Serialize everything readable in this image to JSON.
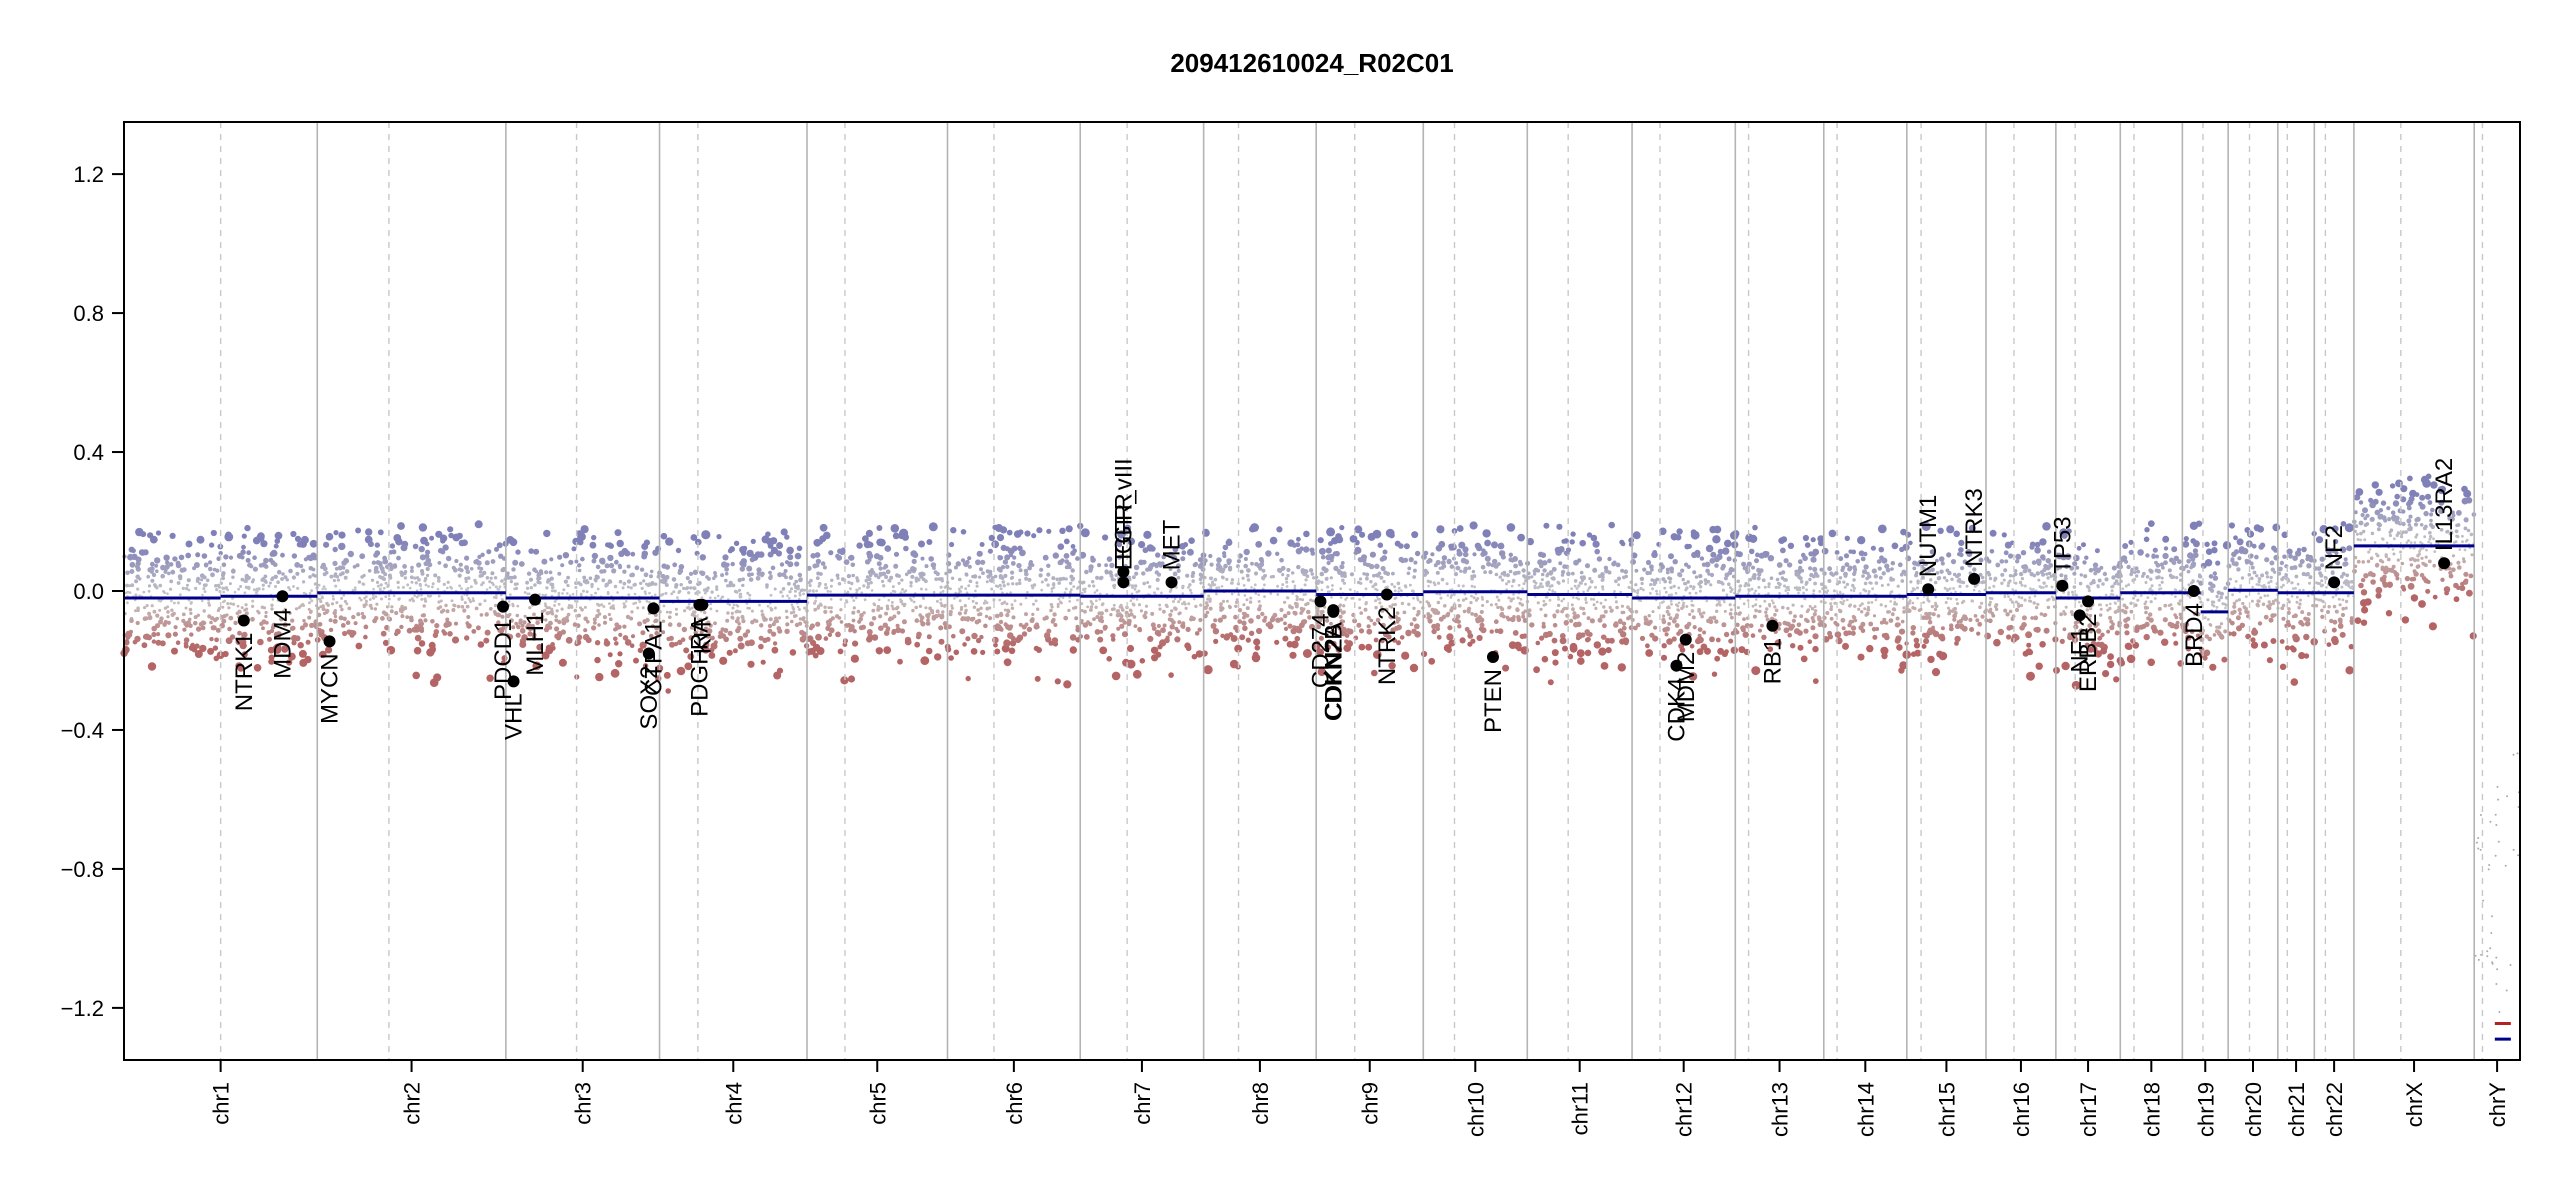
{
  "chart_data": {
    "type": "scatter",
    "title": "209412610024_R02C01",
    "xlabel": "",
    "ylabel": "",
    "ylim": [
      -1.35,
      1.35
    ],
    "y_ticks": [
      1.2,
      0.8,
      0.4,
      0.0,
      -0.4,
      -0.8,
      -1.2
    ],
    "y_tick_labels": [
      "1.2",
      "0.8",
      "0.4",
      "0.0",
      "−0.4",
      "−0.8",
      "−1.2"
    ],
    "chromosomes": [
      {
        "name": "chr1",
        "length": 249,
        "centromere": 0.5
      },
      {
        "name": "chr2",
        "length": 243,
        "centromere": 0.38
      },
      {
        "name": "chr3",
        "length": 198,
        "centromere": 0.46
      },
      {
        "name": "chr4",
        "length": 190,
        "centromere": 0.26
      },
      {
        "name": "chr5",
        "length": 181,
        "centromere": 0.27
      },
      {
        "name": "chr6",
        "length": 171,
        "centromere": 0.35
      },
      {
        "name": "chr7",
        "length": 159,
        "centromere": 0.38
      },
      {
        "name": "chr8",
        "length": 145,
        "centromere": 0.31
      },
      {
        "name": "chr9",
        "length": 138,
        "centromere": 0.36
      },
      {
        "name": "chr10",
        "length": 134,
        "centromere": 0.3
      },
      {
        "name": "chr11",
        "length": 135,
        "centromere": 0.39
      },
      {
        "name": "chr12",
        "length": 133,
        "centromere": 0.27
      },
      {
        "name": "chr13",
        "length": 114,
        "centromere": 0.15
      },
      {
        "name": "chr14",
        "length": 107,
        "centromere": 0.16
      },
      {
        "name": "chr15",
        "length": 102,
        "centromere": 0.18
      },
      {
        "name": "chr16",
        "length": 90,
        "centromere": 0.4
      },
      {
        "name": "chr17",
        "length": 83,
        "centromere": 0.3
      },
      {
        "name": "chr18",
        "length": 80,
        "centromere": 0.22
      },
      {
        "name": "chr19",
        "length": 59,
        "centromere": 0.45
      },
      {
        "name": "chr20",
        "length": 64,
        "centromere": 0.43
      },
      {
        "name": "chr21",
        "length": 47,
        "centromere": 0.26
      },
      {
        "name": "chr22",
        "length": 51,
        "centromere": 0.28
      },
      {
        "name": "chrX",
        "length": 155,
        "centromere": 0.39
      },
      {
        "name": "chrY",
        "length": 59,
        "centromere": 0.18
      }
    ],
    "segments": [
      {
        "chrom": "chr1",
        "start": 0.0,
        "end": 0.5,
        "value": -0.02
      },
      {
        "chrom": "chr1",
        "start": 0.5,
        "end": 1.0,
        "value": -0.015
      },
      {
        "chrom": "chr2",
        "start": 0.0,
        "end": 1.0,
        "value": -0.005
      },
      {
        "chrom": "chr3",
        "start": 0.0,
        "end": 1.0,
        "value": -0.02
      },
      {
        "chrom": "chr4",
        "start": 0.0,
        "end": 1.0,
        "value": -0.03
      },
      {
        "chrom": "chr5",
        "start": 0.0,
        "end": 1.0,
        "value": -0.012
      },
      {
        "chrom": "chr6",
        "start": 0.0,
        "end": 1.0,
        "value": -0.012
      },
      {
        "chrom": "chr7",
        "start": 0.0,
        "end": 1.0,
        "value": -0.015
      },
      {
        "chrom": "chr8",
        "start": 0.0,
        "end": 1.0,
        "value": 0.0
      },
      {
        "chrom": "chr9",
        "start": 0.0,
        "end": 1.0,
        "value": -0.01
      },
      {
        "chrom": "chr10",
        "start": 0.0,
        "end": 1.0,
        "value": -0.002
      },
      {
        "chrom": "chr11",
        "start": 0.0,
        "end": 1.0,
        "value": -0.01
      },
      {
        "chrom": "chr12",
        "start": 0.0,
        "end": 1.0,
        "value": -0.02
      },
      {
        "chrom": "chr13",
        "start": 0.0,
        "end": 1.0,
        "value": -0.015
      },
      {
        "chrom": "chr14",
        "start": 0.0,
        "end": 1.0,
        "value": -0.015
      },
      {
        "chrom": "chr15",
        "start": 0.0,
        "end": 1.0,
        "value": -0.01
      },
      {
        "chrom": "chr16",
        "start": 0.0,
        "end": 1.0,
        "value": -0.005
      },
      {
        "chrom": "chr17",
        "start": 0.0,
        "end": 1.0,
        "value": -0.02
      },
      {
        "chrom": "chr18",
        "start": 0.0,
        "end": 1.0,
        "value": -0.005
      },
      {
        "chrom": "chr19",
        "start": 0.0,
        "end": 0.4,
        "value": -0.005
      },
      {
        "chrom": "chr19",
        "start": 0.4,
        "end": 1.0,
        "value": -0.06
      },
      {
        "chrom": "chr20",
        "start": 0.0,
        "end": 1.0,
        "value": 0.002
      },
      {
        "chrom": "chr21",
        "start": 0.0,
        "end": 1.0,
        "value": -0.005
      },
      {
        "chrom": "chr22",
        "start": 0.0,
        "end": 1.0,
        "value": -0.005
      },
      {
        "chrom": "chrX",
        "start": 0.0,
        "end": 1.0,
        "value": 0.13
      }
    ],
    "chrY_segments": [
      {
        "value": -1.245,
        "color": "#b22222"
      },
      {
        "value": -1.29,
        "color": "#00008b"
      }
    ],
    "genes": [
      {
        "name": "NTRK1",
        "chrom": "chr1",
        "pos": 0.62,
        "value": -0.085,
        "label_side": "below"
      },
      {
        "name": "MDM4",
        "chrom": "chr1",
        "pos": 0.82,
        "value": -0.015,
        "label_side": "below"
      },
      {
        "name": "MYCN",
        "chrom": "chr2",
        "pos": 0.065,
        "value": -0.145,
        "label_side": "below"
      },
      {
        "name": "VHL",
        "chrom": "chr3",
        "pos": 0.05,
        "value": -0.26,
        "label_side": "below"
      },
      {
        "name": "PDCD1",
        "chrom": "chr2",
        "pos": 0.985,
        "value": -0.045,
        "label_side": "below"
      },
      {
        "name": "MLH1",
        "chrom": "chr3",
        "pos": 0.19,
        "value": -0.025,
        "label_side": "below"
      },
      {
        "name": "SOX2",
        "chrom": "chr3",
        "pos": 0.93,
        "value": -0.18,
        "label_side": "below"
      },
      {
        "name": "CTPA1",
        "chrom": "chr3",
        "pos": 0.96,
        "value": -0.05,
        "label_side": "below"
      },
      {
        "name": "PDGFRA",
        "chrom": "chr4",
        "pos": 0.27,
        "value": -0.04,
        "label_side": "below"
      },
      {
        "name": "KIT",
        "chrom": "chr4",
        "pos": 0.29,
        "value": -0.04,
        "label_side": "below"
      },
      {
        "name": "EGFR",
        "chrom": "chr7",
        "pos": 0.35,
        "value": 0.055,
        "label_side": "above"
      },
      {
        "name": "EGFR_vIII",
        "chrom": "chr7",
        "pos": 0.35,
        "value": 0.025,
        "label_side": "above"
      },
      {
        "name": "MET",
        "chrom": "chr7",
        "pos": 0.74,
        "value": 0.025,
        "label_side": "above"
      },
      {
        "name": "CD274",
        "chrom": "chr9",
        "pos": 0.04,
        "value": -0.03,
        "label_side": "below"
      },
      {
        "name": "CDKN2A",
        "chrom": "chr9",
        "pos": 0.16,
        "value": -0.055,
        "label_side": "below"
      },
      {
        "name": "CDKN2B",
        "chrom": "chr9",
        "pos": 0.16,
        "value": -0.06,
        "label_side": "below"
      },
      {
        "name": "NTRK2",
        "chrom": "chr9",
        "pos": 0.66,
        "value": -0.01,
        "label_side": "below"
      },
      {
        "name": "PTEN",
        "chrom": "chr10",
        "pos": 0.67,
        "value": -0.19,
        "label_side": "below"
      },
      {
        "name": "CDK4",
        "chrom": "chr12",
        "pos": 0.43,
        "value": -0.215,
        "label_side": "below"
      },
      {
        "name": "MDM2",
        "chrom": "chr12",
        "pos": 0.52,
        "value": -0.14,
        "label_side": "below"
      },
      {
        "name": "RB1",
        "chrom": "chr13",
        "pos": 0.42,
        "value": -0.1,
        "label_side": "below"
      },
      {
        "name": "NUTM1",
        "chrom": "chr15",
        "pos": 0.27,
        "value": 0.005,
        "label_side": "above"
      },
      {
        "name": "NTRK3",
        "chrom": "chr15",
        "pos": 0.85,
        "value": 0.035,
        "label_side": "above"
      },
      {
        "name": "TP53",
        "chrom": "chr17",
        "pos": 0.1,
        "value": 0.015,
        "label_side": "above"
      },
      {
        "name": "NF1",
        "chrom": "chr17",
        "pos": 0.37,
        "value": -0.07,
        "label_side": "below"
      },
      {
        "name": "ERBB2",
        "chrom": "chr17",
        "pos": 0.5,
        "value": -0.03,
        "label_side": "below"
      },
      {
        "name": "BRD4",
        "chrom": "chr19",
        "pos": 0.25,
        "value": 0.0,
        "label_side": "below"
      },
      {
        "name": "NF2",
        "chrom": "chr22",
        "pos": 0.5,
        "value": 0.025,
        "label_side": "above"
      },
      {
        "name": "IL13RA2",
        "chrom": "chrX",
        "pos": 0.75,
        "value": 0.08,
        "label_side": "above"
      }
    ],
    "colors": {
      "positive": "#8080b8",
      "negative": "#b46464",
      "neutral": "#c8c8c8",
      "segment": "#00008b",
      "gene_point": "#000000",
      "chrom_boundary": "#b4b4b4",
      "centromere_line": "#c8c8c8"
    },
    "grid": false,
    "legend": "none"
  }
}
